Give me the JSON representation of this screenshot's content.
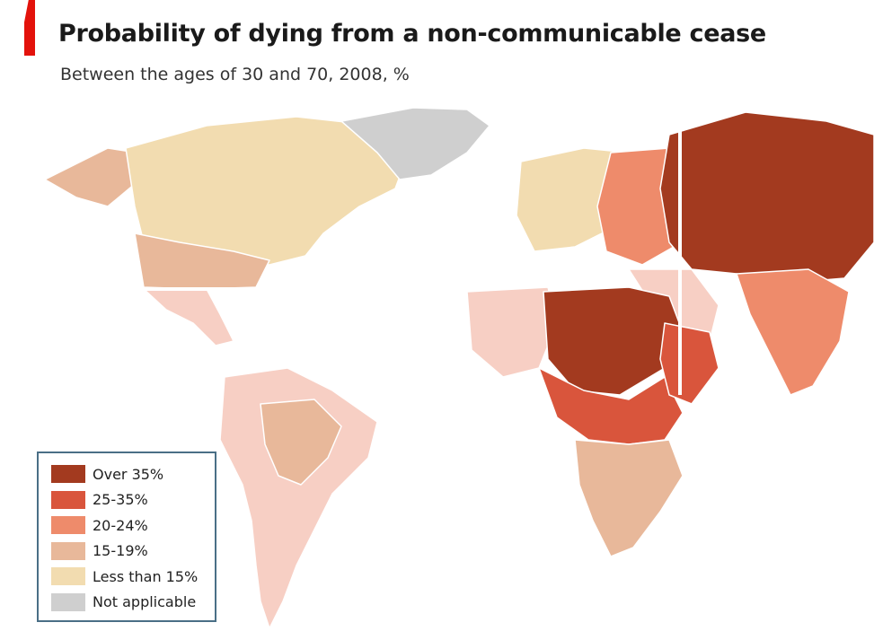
{
  "title": "Probability of dying from a non-communicable cease",
  "subtitle": "Between the ages of 30 and 70, 2008, %",
  "colors": {
    "accent": "#e3120b",
    "over_35": "#a33a1f",
    "25_35": "#d9553c",
    "20_24": "#ee8b6b",
    "15_19": "#e8b89a",
    "less_15": "#f2dcb0",
    "not_applicable": "#cfcfcf",
    "low_light": "#f7cfc4"
  },
  "legend": {
    "items": [
      {
        "label": "Over 35%",
        "color": "#a33a1f"
      },
      {
        "label": "25-35%",
        "color": "#d9553c"
      },
      {
        "label": "20-24%",
        "color": "#ee8b6b"
      },
      {
        "label": "15-19%",
        "color": "#e8b89a"
      },
      {
        "label": "Less than 15%",
        "color": "#f2dcb0"
      },
      {
        "label": "Not applicable",
        "color": "#cfcfcf"
      }
    ]
  },
  "regions": [
    {
      "name": "canada-usa",
      "category": "less_15"
    },
    {
      "name": "alaska",
      "category": "15_19"
    },
    {
      "name": "usa-south",
      "category": "15_19"
    },
    {
      "name": "greenland",
      "category": "not_applicable"
    },
    {
      "name": "central-america",
      "category": "low_light"
    },
    {
      "name": "south-america",
      "category": "low_light"
    },
    {
      "name": "bolivia-brazil-interior",
      "category": "15_19"
    },
    {
      "name": "western-europe",
      "category": "less_15"
    },
    {
      "name": "eastern-europe",
      "category": "20_24"
    },
    {
      "name": "russia-central-asia",
      "category": "over_35"
    },
    {
      "name": "middle-east",
      "category": "low_light"
    },
    {
      "name": "south-asia",
      "category": "20_24"
    },
    {
      "name": "sahel-central-africa",
      "category": "over_35"
    },
    {
      "name": "central-africa",
      "category": "25_35"
    },
    {
      "name": "west-africa",
      "category": "low_light"
    },
    {
      "name": "east-africa",
      "category": "25_35"
    },
    {
      "name": "southern-africa",
      "category": "15_19"
    }
  ]
}
